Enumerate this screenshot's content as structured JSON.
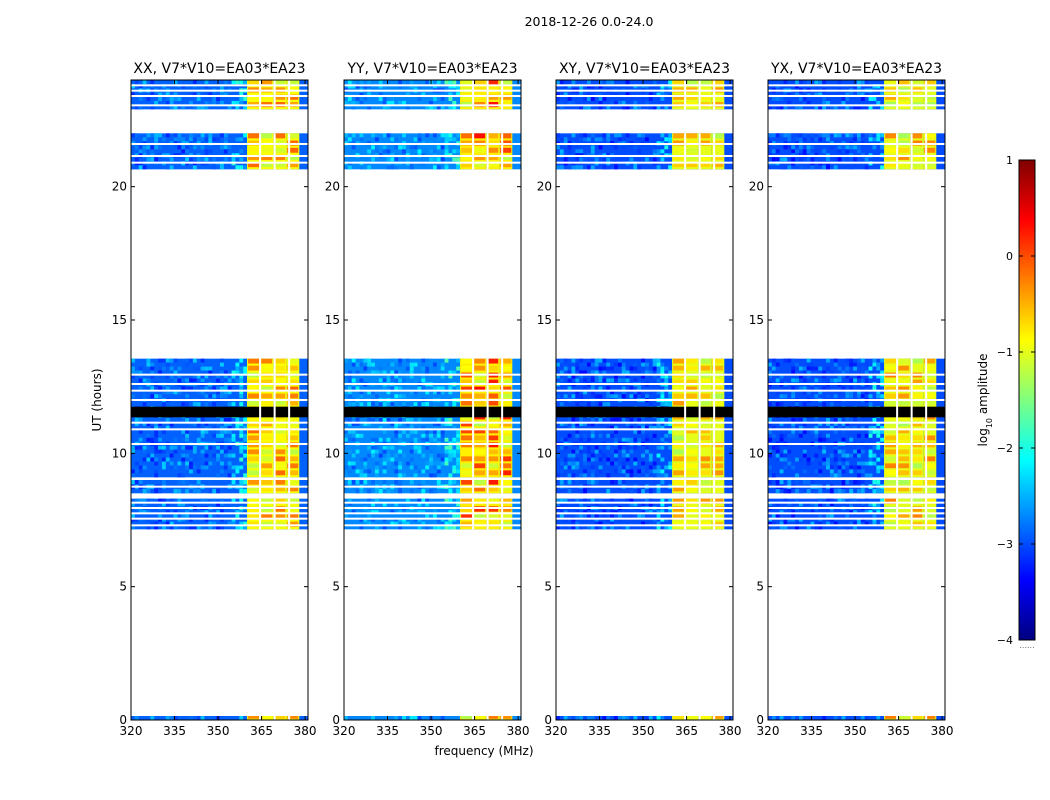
{
  "figure": {
    "suptitle": "2018-12-26 0.0-24.0",
    "xlabel": "frequency (MHz)",
    "ylabel": "UT (hours)",
    "colorbar_label_prefix": "log",
    "colorbar_label_sub": "10",
    "colorbar_label_suffix": " amplitude",
    "colorbar_ticks": [
      "1",
      "0",
      "−1",
      "−2",
      "−3",
      "−4"
    ],
    "colorbar_tick_values": [
      1,
      0,
      -1,
      -2,
      -3,
      -4
    ],
    "colorbar_range": [
      -4,
      1
    ],
    "colorbar_footer": "......",
    "colormap": "jet",
    "colors": {
      "jet": [
        "#00007f",
        "#0000ff",
        "#007fff",
        "#00ffff",
        "#7fff7f",
        "#ffff00",
        "#ff7f00",
        "#ff0000",
        "#7f0000"
      ],
      "gap": "#ffffff",
      "flagged": "#000000"
    }
  },
  "chart_data": [
    {
      "type": "heatmap",
      "title": "XX, V7*V10=EA03*EA23",
      "xlabel": "frequency (MHz)",
      "ylabel": "UT (hours)",
      "xlim": [
        320,
        381
      ],
      "ylim": [
        0,
        24
      ],
      "xticks": [
        "320",
        "335",
        "350",
        "365",
        "380"
      ],
      "xtick_values": [
        320,
        335,
        350,
        365,
        380
      ],
      "yticks": [
        "0",
        "5",
        "10",
        "15",
        "20"
      ],
      "ytick_values": [
        0,
        5,
        10,
        15,
        20
      ],
      "background_log_amplitude": -2.9,
      "high_band_mhz": [
        360,
        378
      ],
      "high_band_log_amplitude": -0.9,
      "peak_log_amplitude": -0.2
    },
    {
      "type": "heatmap",
      "title": "YY, V7*V10=EA03*EA23",
      "xlabel": "frequency (MHz)",
      "ylabel": "UT (hours)",
      "xlim": [
        320,
        381
      ],
      "ylim": [
        0,
        24
      ],
      "xticks": [
        "320",
        "335",
        "350",
        "365",
        "380"
      ],
      "xtick_values": [
        320,
        335,
        350,
        365,
        380
      ],
      "yticks": [
        "0",
        "5",
        "10",
        "15",
        "20"
      ],
      "ytick_values": [
        0,
        5,
        10,
        15,
        20
      ],
      "background_log_amplitude": -2.7,
      "high_band_mhz": [
        360,
        378
      ],
      "high_band_log_amplitude": -0.8,
      "peak_log_amplitude": 0.2
    },
    {
      "type": "heatmap",
      "title": "XY, V7*V10=EA03*EA23",
      "xlabel": "frequency (MHz)",
      "ylabel": "UT (hours)",
      "xlim": [
        320,
        381
      ],
      "ylim": [
        0,
        24
      ],
      "xticks": [
        "320",
        "335",
        "350",
        "365",
        "380"
      ],
      "xtick_values": [
        320,
        335,
        350,
        365,
        380
      ],
      "yticks": [
        "0",
        "5",
        "10",
        "15",
        "20"
      ],
      "ytick_values": [
        0,
        5,
        10,
        15,
        20
      ],
      "background_log_amplitude": -3.0,
      "high_band_mhz": [
        360,
        378
      ],
      "high_band_log_amplitude": -1.0,
      "peak_log_amplitude": -0.4
    },
    {
      "type": "heatmap",
      "title": "YX, V7*V10=EA03*EA23",
      "xlabel": "frequency (MHz)",
      "ylabel": "UT (hours)",
      "xlim": [
        320,
        381
      ],
      "ylim": [
        0,
        24
      ],
      "xticks": [
        "320",
        "335",
        "350",
        "365",
        "380"
      ],
      "xtick_values": [
        320,
        335,
        350,
        365,
        380
      ],
      "yticks": [
        "0",
        "5",
        "10",
        "15",
        "20"
      ],
      "ytick_values": [
        0,
        5,
        10,
        15,
        20
      ],
      "background_log_amplitude": -3.0,
      "high_band_mhz": [
        360,
        378
      ],
      "high_band_log_amplitude": -1.0,
      "peak_log_amplitude": -0.3
    }
  ],
  "time_structure": {
    "data_blocks_hours": [
      [
        0.0,
        0.15
      ],
      [
        7.15,
        8.3
      ],
      [
        8.5,
        9.0
      ],
      [
        9.1,
        13.55
      ],
      [
        20.65,
        22.0
      ],
      [
        22.9,
        24.0
      ]
    ],
    "flagged_blocks_hours": [
      [
        11.35,
        11.75
      ]
    ],
    "gap_lines_hours": [
      7.3,
      7.55,
      7.75,
      7.95,
      8.15,
      8.75,
      9.05,
      10.35,
      10.9,
      11.15,
      12.0,
      12.35,
      12.6,
      12.95,
      20.9,
      21.15,
      21.6,
      23.05,
      23.4,
      23.6,
      23.8
    ],
    "channel_gaps_mhz": [
      364.5,
      369.5,
      374.5
    ]
  }
}
